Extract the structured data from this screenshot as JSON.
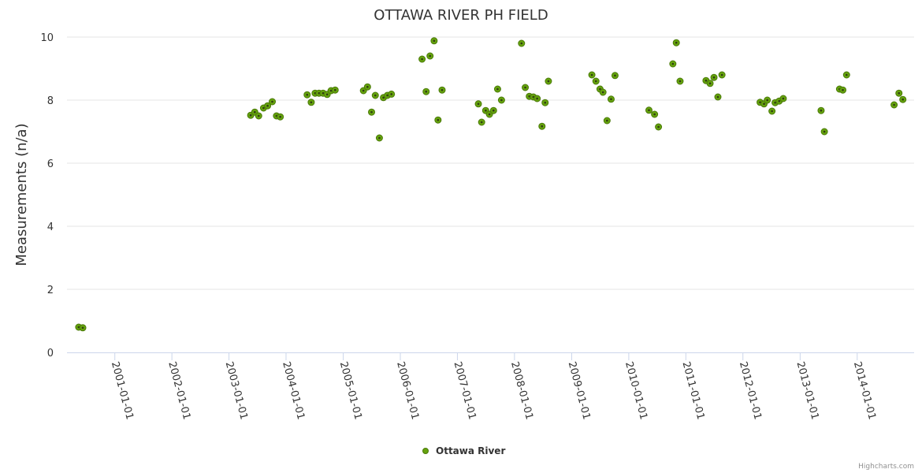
{
  "chart_data": {
    "type": "scatter",
    "title": "OTTAWA RIVER PH FIELD",
    "ylabel": "Measurements (n/a)",
    "xlabel": "",
    "ylim": [
      0,
      10
    ],
    "y_ticks": [
      "0",
      "2",
      "4",
      "6",
      "8",
      "10"
    ],
    "x_range": [
      "2000-03-01",
      "2014-12-31"
    ],
    "x_ticks": [
      "2001-01-01",
      "2002-01-01",
      "2003-01-01",
      "2004-01-01",
      "2005-01-01",
      "2006-01-01",
      "2007-01-01",
      "2008-01-01",
      "2009-01-01",
      "2010-01-01",
      "2011-01-01",
      "2012-01-01",
      "2013-01-01",
      "2014-01-01"
    ],
    "legend": "bottom-center",
    "credits": "Highcharts.com",
    "series": [
      {
        "name": "Ottawa River",
        "color": "#65a30d",
        "points": [
          {
            "x": "2000-05-15",
            "y": 0.8
          },
          {
            "x": "2000-06-10",
            "y": 0.78
          },
          {
            "x": "2003-05-20",
            "y": 7.52
          },
          {
            "x": "2003-06-15",
            "y": 7.62
          },
          {
            "x": "2003-07-10",
            "y": 7.5
          },
          {
            "x": "2003-08-10",
            "y": 7.75
          },
          {
            "x": "2003-09-05",
            "y": 7.82
          },
          {
            "x": "2003-10-05",
            "y": 7.95
          },
          {
            "x": "2003-11-01",
            "y": 7.5
          },
          {
            "x": "2003-11-25",
            "y": 7.47
          },
          {
            "x": "2004-05-15",
            "y": 8.17
          },
          {
            "x": "2004-06-10",
            "y": 7.93
          },
          {
            "x": "2004-07-05",
            "y": 8.22
          },
          {
            "x": "2004-07-30",
            "y": 8.22
          },
          {
            "x": "2004-08-25",
            "y": 8.22
          },
          {
            "x": "2004-09-20",
            "y": 8.18
          },
          {
            "x": "2004-10-15",
            "y": 8.3
          },
          {
            "x": "2004-11-10",
            "y": 8.32
          },
          {
            "x": "2005-05-10",
            "y": 8.3
          },
          {
            "x": "2005-06-05",
            "y": 8.42
          },
          {
            "x": "2005-07-01",
            "y": 7.62
          },
          {
            "x": "2005-07-25",
            "y": 8.15
          },
          {
            "x": "2005-08-20",
            "y": 6.8
          },
          {
            "x": "2005-09-15",
            "y": 8.08
          },
          {
            "x": "2005-10-10",
            "y": 8.15
          },
          {
            "x": "2005-11-05",
            "y": 8.19
          },
          {
            "x": "2006-05-20",
            "y": 9.3
          },
          {
            "x": "2006-06-15",
            "y": 8.27
          },
          {
            "x": "2006-07-10",
            "y": 9.4
          },
          {
            "x": "2006-08-05",
            "y": 9.88
          },
          {
            "x": "2006-08-30",
            "y": 7.37
          },
          {
            "x": "2006-09-25",
            "y": 8.32
          },
          {
            "x": "2007-05-15",
            "y": 7.88
          },
          {
            "x": "2007-06-05",
            "y": 7.3
          },
          {
            "x": "2007-07-01",
            "y": 7.67
          },
          {
            "x": "2007-07-25",
            "y": 7.55
          },
          {
            "x": "2007-08-20",
            "y": 7.67
          },
          {
            "x": "2007-09-15",
            "y": 8.35
          },
          {
            "x": "2007-10-10",
            "y": 8.0
          },
          {
            "x": "2008-02-15",
            "y": 9.8
          },
          {
            "x": "2008-03-10",
            "y": 8.4
          },
          {
            "x": "2008-04-05",
            "y": 8.12
          },
          {
            "x": "2008-05-01",
            "y": 8.1
          },
          {
            "x": "2008-05-25",
            "y": 8.05
          },
          {
            "x": "2008-06-25",
            "y": 7.17
          },
          {
            "x": "2008-07-15",
            "y": 7.92
          },
          {
            "x": "2008-08-05",
            "y": 8.6
          },
          {
            "x": "2009-05-10",
            "y": 8.8
          },
          {
            "x": "2009-06-05",
            "y": 8.6
          },
          {
            "x": "2009-07-01",
            "y": 8.35
          },
          {
            "x": "2009-07-20",
            "y": 8.25
          },
          {
            "x": "2009-08-15",
            "y": 7.35
          },
          {
            "x": "2009-09-10",
            "y": 8.03
          },
          {
            "x": "2009-10-05",
            "y": 8.78
          },
          {
            "x": "2010-05-10",
            "y": 7.68
          },
          {
            "x": "2010-06-15",
            "y": 7.55
          },
          {
            "x": "2010-07-10",
            "y": 7.15
          },
          {
            "x": "2010-10-10",
            "y": 9.15
          },
          {
            "x": "2010-11-01",
            "y": 9.82
          },
          {
            "x": "2010-11-25",
            "y": 8.6
          },
          {
            "x": "2011-05-10",
            "y": 8.62
          },
          {
            "x": "2011-06-05",
            "y": 8.53
          },
          {
            "x": "2011-06-30",
            "y": 8.72
          },
          {
            "x": "2011-07-25",
            "y": 8.1
          },
          {
            "x": "2011-08-20",
            "y": 8.8
          },
          {
            "x": "2012-04-20",
            "y": 7.93
          },
          {
            "x": "2012-05-15",
            "y": 7.88
          },
          {
            "x": "2012-06-05",
            "y": 8.0
          },
          {
            "x": "2012-07-05",
            "y": 7.65
          },
          {
            "x": "2012-07-25",
            "y": 7.92
          },
          {
            "x": "2012-08-20",
            "y": 7.97
          },
          {
            "x": "2012-09-15",
            "y": 8.05
          },
          {
            "x": "2013-05-15",
            "y": 7.67
          },
          {
            "x": "2013-06-05",
            "y": 7.0
          },
          {
            "x": "2013-09-10",
            "y": 8.35
          },
          {
            "x": "2013-10-01",
            "y": 8.32
          },
          {
            "x": "2013-10-25",
            "y": 8.8
          },
          {
            "x": "2014-08-25",
            "y": 7.85
          },
          {
            "x": "2014-09-25",
            "y": 8.22
          },
          {
            "x": "2014-10-20",
            "y": 8.02
          }
        ]
      }
    ]
  }
}
